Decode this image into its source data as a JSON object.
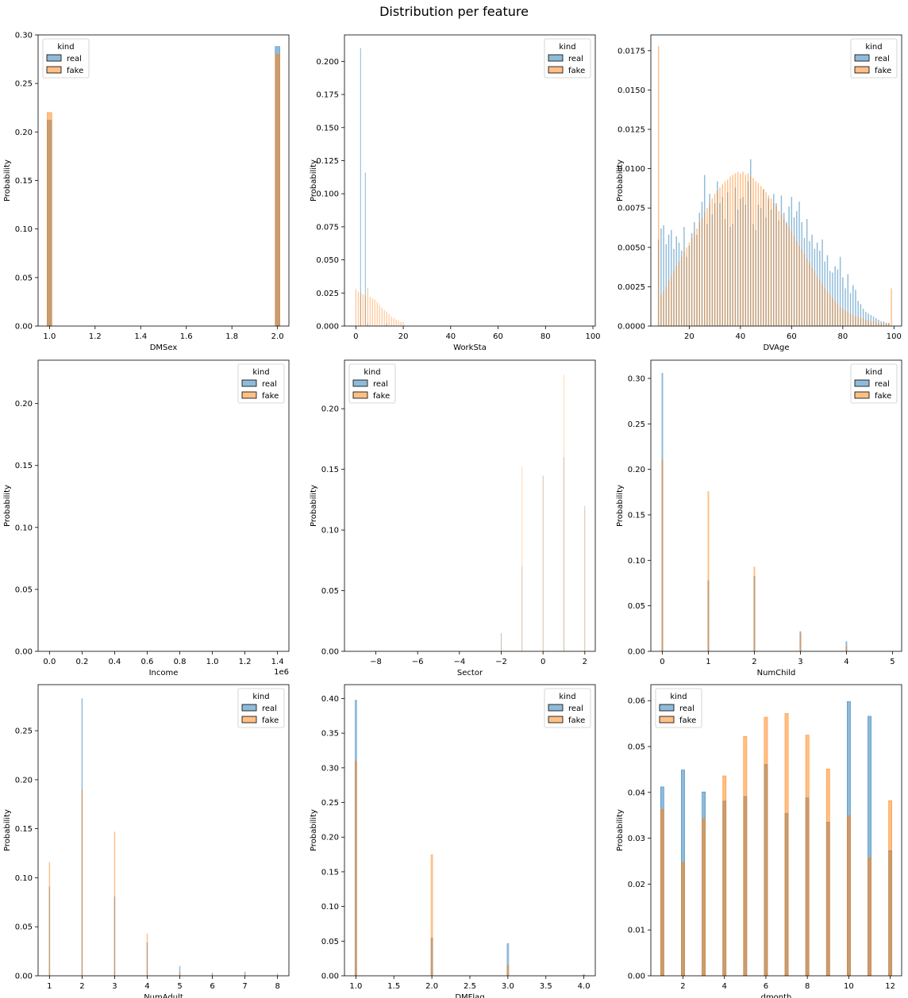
{
  "figure": {
    "title": "Distribution per feature"
  },
  "colors": {
    "real": "#1f77b4",
    "fake": "#ff7f0e",
    "overlap": "#4c6a80",
    "bar_alpha": 0.5
  },
  "legend": {
    "title": "kind",
    "entries": [
      "real",
      "fake"
    ]
  },
  "chart_data": [
    {
      "type": "bar",
      "xlabel": "DMSex",
      "ylabel": "Probability",
      "xlim": [
        0.95,
        2.05
      ],
      "ylim": [
        0,
        0.3
      ],
      "xticks": [
        1.0,
        1.2,
        1.4,
        1.6,
        1.8,
        2.0
      ],
      "yticks": [
        0,
        0.05,
        0.1,
        0.15,
        0.2,
        0.25,
        0.3
      ],
      "ydec": 2,
      "xdec": 1,
      "legend_position": "upper-left",
      "bar_width": 0.02,
      "series": [
        {
          "name": "real",
          "x": [
            1.0,
            2.0
          ],
          "values": [
            0.212,
            0.288
          ]
        },
        {
          "name": "fake",
          "x": [
            1.0,
            2.0
          ],
          "values": [
            0.22,
            0.28
          ]
        }
      ]
    },
    {
      "type": "bar",
      "xlabel": "WorkSta",
      "ylabel": "Probability",
      "xlim": [
        -4.8,
        101
      ],
      "ylim": [
        0,
        0.22
      ],
      "xticks": [
        0,
        20,
        40,
        60,
        80,
        100
      ],
      "yticks": [
        0,
        0.025,
        0.05,
        0.075,
        0.1,
        0.125,
        0.15,
        0.175,
        0.2
      ],
      "ydec": 3,
      "xdec": 0,
      "legend_position": "upper-right",
      "bar_width": 0.35,
      "series": [
        {
          "name": "real",
          "x": [
            2,
            4,
            5,
            13
          ],
          "values": [
            0.21,
            0.116,
            0.002,
            0.002
          ]
        },
        {
          "name": "fake",
          "x": [
            0,
            1,
            2,
            3,
            4,
            5,
            6,
            7,
            8,
            9,
            10,
            11,
            12,
            13,
            14,
            15,
            16,
            17,
            18,
            19,
            20
          ],
          "values": [
            0.028,
            0.026,
            0.025,
            0.024,
            0.023,
            0.029,
            0.022,
            0.021,
            0.02,
            0.018,
            0.016,
            0.014,
            0.012,
            0.011,
            0.009,
            0.007,
            0.006,
            0.005,
            0.004,
            0.003,
            0.003
          ]
        }
      ]
    },
    {
      "type": "bar",
      "xlabel": "DVAge",
      "ylabel": "Probability",
      "xlim": [
        5,
        103
      ],
      "ylim": [
        0,
        0.0185
      ],
      "xticks": [
        20,
        40,
        60,
        80,
        100
      ],
      "yticks": [
        0,
        0.0025,
        0.005,
        0.0075,
        0.01,
        0.0125,
        0.015,
        0.0175
      ],
      "ydec": 4,
      "xdec": 0,
      "legend_position": "upper-right",
      "bar_width": 0.45,
      "series": [
        {
          "name": "real",
          "x": [
            8,
            9,
            10,
            11,
            12,
            13,
            14,
            15,
            16,
            17,
            18,
            19,
            20,
            21,
            22,
            23,
            24,
            25,
            26,
            27,
            28,
            29,
            30,
            31,
            32,
            33,
            34,
            35,
            36,
            37,
            38,
            39,
            40,
            41,
            42,
            43,
            44,
            45,
            46,
            47,
            48,
            49,
            50,
            51,
            52,
            53,
            54,
            55,
            56,
            57,
            58,
            59,
            60,
            61,
            62,
            63,
            64,
            65,
            66,
            67,
            68,
            69,
            70,
            71,
            72,
            73,
            74,
            75,
            76,
            77,
            78,
            79,
            80,
            81,
            82,
            83,
            84,
            85,
            86,
            87,
            88,
            89,
            90,
            91,
            92,
            93,
            94,
            95,
            96,
            97,
            98
          ],
          "values": [
            0.0055,
            0.0062,
            0.0064,
            0.0052,
            0.0058,
            0.0061,
            0.0049,
            0.0057,
            0.0053,
            0.0048,
            0.0063,
            0.0044,
            0.0051,
            0.0059,
            0.0066,
            0.0058,
            0.0072,
            0.0079,
            0.0096,
            0.0065,
            0.0084,
            0.0071,
            0.0078,
            0.0092,
            0.0078,
            0.0082,
            0.0068,
            0.0085,
            0.0063,
            0.0065,
            0.0088,
            0.0074,
            0.0081,
            0.0082,
            0.0077,
            0.0092,
            0.0106,
            0.0065,
            0.0061,
            0.0077,
            0.0075,
            0.0087,
            0.0069,
            0.0081,
            0.0074,
            0.0084,
            0.0078,
            0.0067,
            0.0083,
            0.0072,
            0.0066,
            0.0076,
            0.0082,
            0.0069,
            0.0073,
            0.0079,
            0.0066,
            0.0056,
            0.0068,
            0.0054,
            0.0058,
            0.0049,
            0.0053,
            0.0048,
            0.0055,
            0.0041,
            0.0045,
            0.0035,
            0.0034,
            0.0038,
            0.0036,
            0.0044,
            0.0031,
            0.0024,
            0.0033,
            0.0021,
            0.0026,
            0.0023,
            0.0016,
            0.0014,
            0.0011,
            0.0009,
            0.0008,
            0.0007,
            0.0006,
            0.0005,
            0.0004,
            0.0003,
            0.0003,
            0.0002,
            0.0002
          ]
        },
        {
          "name": "fake",
          "x": [
            8,
            9,
            10,
            11,
            12,
            13,
            14,
            15,
            16,
            17,
            18,
            19,
            20,
            21,
            22,
            23,
            24,
            25,
            26,
            27,
            28,
            29,
            30,
            31,
            32,
            33,
            34,
            35,
            36,
            37,
            38,
            39,
            40,
            41,
            42,
            43,
            44,
            45,
            46,
            47,
            48,
            49,
            50,
            51,
            52,
            53,
            54,
            55,
            56,
            57,
            58,
            59,
            60,
            61,
            62,
            63,
            64,
            65,
            66,
            67,
            68,
            69,
            70,
            71,
            72,
            73,
            74,
            75,
            76,
            77,
            78,
            79,
            80,
            81,
            82,
            83,
            84,
            85,
            86,
            87,
            88,
            89,
            90,
            91,
            92,
            93,
            94,
            95,
            96,
            97,
            98,
            99
          ],
          "values": [
            0.0178,
            0.002,
            0.0022,
            0.0025,
            0.0029,
            0.0032,
            0.0035,
            0.0038,
            0.0041,
            0.0044,
            0.0047,
            0.005,
            0.0053,
            0.0056,
            0.0059,
            0.0062,
            0.0066,
            0.0069,
            0.0072,
            0.0075,
            0.0078,
            0.0081,
            0.0084,
            0.0086,
            0.0088,
            0.009,
            0.0092,
            0.0093,
            0.0095,
            0.0096,
            0.0097,
            0.0098,
            0.0097,
            0.0098,
            0.0096,
            0.0097,
            0.0095,
            0.0094,
            0.0092,
            0.0091,
            0.0089,
            0.0087,
            0.0085,
            0.0083,
            0.0081,
            0.0078,
            0.0076,
            0.0073,
            0.0071,
            0.0068,
            0.0065,
            0.0063,
            0.006,
            0.0057,
            0.0054,
            0.0051,
            0.0049,
            0.0046,
            0.0043,
            0.004,
            0.0037,
            0.0035,
            0.0032,
            0.0029,
            0.0027,
            0.0024,
            0.0022,
            0.002,
            0.0018,
            0.0016,
            0.0014,
            0.0012,
            0.0011,
            0.001,
            0.0009,
            0.0008,
            0.0007,
            0.0006,
            0.0006,
            0.0005,
            0.0005,
            0.0004,
            0.0004,
            0.0003,
            0.0003,
            0.0003,
            0.0002,
            0.0002,
            0.0002,
            0.0002,
            0.0002,
            0.0024
          ]
        }
      ]
    },
    {
      "type": "bar",
      "xlabel": "Income",
      "ylabel": "Probability",
      "xlim": [
        -70000,
        1470000
      ],
      "ylim": [
        0,
        0.235
      ],
      "xticks": [
        0,
        0.2,
        0.4,
        0.6,
        0.8,
        1.0,
        1.2,
        1.4
      ],
      "xtick_scale": 1000000,
      "offset_text": "1e6",
      "yticks": [
        0,
        0.05,
        0.1,
        0.15,
        0.2
      ],
      "ydec": 2,
      "xdec": 1,
      "legend_position": "upper-right",
      "bar_width": 1000,
      "series": [
        {
          "name": "real",
          "x": [],
          "values": []
        },
        {
          "name": "fake",
          "x": [],
          "values": []
        }
      ]
    },
    {
      "type": "bar",
      "xlabel": "Sector",
      "ylabel": "Probability",
      "xlim": [
        -9.5,
        2.5
      ],
      "ylim": [
        0,
        0.24
      ],
      "xticks": [
        -8,
        -6,
        -4,
        -2,
        0,
        2
      ],
      "yticks": [
        0,
        0.05,
        0.1,
        0.15,
        0.2
      ],
      "ydec": 2,
      "xdec": 0,
      "legend_position": "upper-left",
      "bar_width": 0.02,
      "series": [
        {
          "name": "real",
          "x": [
            -2,
            -1,
            0,
            1,
            2
          ],
          "values": [
            0.015,
            0.07,
            0.145,
            0.16,
            0.12
          ]
        },
        {
          "name": "fake",
          "x": [
            -2,
            -1,
            0,
            1,
            2
          ],
          "values": [
            0.015,
            0.152,
            0.144,
            0.228,
            0.117
          ]
        }
      ]
    },
    {
      "type": "bar",
      "xlabel": "NumChild",
      "ylabel": "Probability",
      "xlim": [
        -0.25,
        5.2
      ],
      "ylim": [
        0,
        0.32
      ],
      "xticks": [
        0,
        1,
        2,
        3,
        4,
        5
      ],
      "yticks": [
        0,
        0.05,
        0.1,
        0.15,
        0.2,
        0.25,
        0.3
      ],
      "ydec": 2,
      "xdec": 0,
      "legend_position": "upper-right",
      "bar_width": 0.035,
      "series": [
        {
          "name": "real",
          "x": [
            0,
            1,
            2,
            3,
            4
          ],
          "values": [
            0.306,
            0.078,
            0.083,
            0.022,
            0.011
          ]
        },
        {
          "name": "fake",
          "x": [
            0,
            1,
            2,
            3,
            4
          ],
          "values": [
            0.21,
            0.176,
            0.093,
            0.02,
            0.005
          ]
        }
      ]
    },
    {
      "type": "bar",
      "xlabel": "NumAdult",
      "ylabel": "Probability",
      "xlim": [
        0.65,
        8.35
      ],
      "ylim": [
        0,
        0.297
      ],
      "xticks": [
        1,
        2,
        3,
        4,
        5,
        6,
        7,
        8
      ],
      "yticks": [
        0,
        0.05,
        0.1,
        0.15,
        0.2,
        0.25
      ],
      "ydec": 2,
      "xdec": 0,
      "legend_position": "upper-right",
      "bar_width": 0.035,
      "series": [
        {
          "name": "real",
          "x": [
            1,
            2,
            3,
            4,
            5,
            6,
            7,
            8
          ],
          "values": [
            0.091,
            0.283,
            0.081,
            0.034,
            0.01,
            0.003,
            0.004,
            0.002
          ]
        },
        {
          "name": "fake",
          "x": [
            1,
            2,
            3,
            4,
            5,
            6,
            7,
            8
          ],
          "values": [
            0.116,
            0.19,
            0.147,
            0.043,
            0.004,
            0.001,
            0.001,
            0.0005
          ]
        }
      ]
    },
    {
      "type": "bar",
      "xlabel": "DMFlag",
      "ylabel": "Probability",
      "xlim": [
        0.85,
        4.15
      ],
      "ylim": [
        0,
        0.42
      ],
      "xticks": [
        1.0,
        1.5,
        2.0,
        2.5,
        3.0,
        3.5,
        4.0
      ],
      "yticks": [
        0,
        0.05,
        0.1,
        0.15,
        0.2,
        0.25,
        0.3,
        0.35,
        0.4
      ],
      "ydec": 2,
      "xdec": 1,
      "legend_position": "upper-right",
      "bar_width": 0.03,
      "series": [
        {
          "name": "real",
          "x": [
            1,
            2,
            3,
            4
          ],
          "values": [
            0.398,
            0.055,
            0.047,
            0.002
          ]
        },
        {
          "name": "fake",
          "x": [
            1,
            2,
            3,
            4
          ],
          "values": [
            0.31,
            0.175,
            0.016,
            0.001
          ]
        }
      ]
    },
    {
      "type": "bar",
      "xlabel": "dmonth",
      "ylabel": "Probability",
      "xlim": [
        0.45,
        12.55
      ],
      "ylim": [
        0,
        0.0635
      ],
      "xticks": [
        2,
        4,
        6,
        8,
        10,
        12
      ],
      "yticks": [
        0,
        0.01,
        0.02,
        0.03,
        0.04,
        0.05,
        0.06
      ],
      "ydec": 2,
      "xdec": 0,
      "legend_position": "upper-left",
      "bar_width": 0.16,
      "series": [
        {
          "name": "real",
          "x": [
            1,
            2,
            3,
            4,
            5,
            6,
            7,
            8,
            9,
            10,
            11,
            12
          ],
          "values": [
            0.0412,
            0.0449,
            0.0401,
            0.0381,
            0.0391,
            0.0461,
            0.0354,
            0.0388,
            0.0335,
            0.0598,
            0.0566,
            0.0273
          ]
        },
        {
          "name": "fake",
          "x": [
            1,
            2,
            3,
            4,
            5,
            6,
            7,
            8,
            9,
            10,
            11,
            12
          ],
          "values": [
            0.0363,
            0.0247,
            0.0342,
            0.0436,
            0.0522,
            0.0564,
            0.0572,
            0.0525,
            0.0451,
            0.0349,
            0.0257,
            0.0382
          ]
        }
      ]
    }
  ]
}
